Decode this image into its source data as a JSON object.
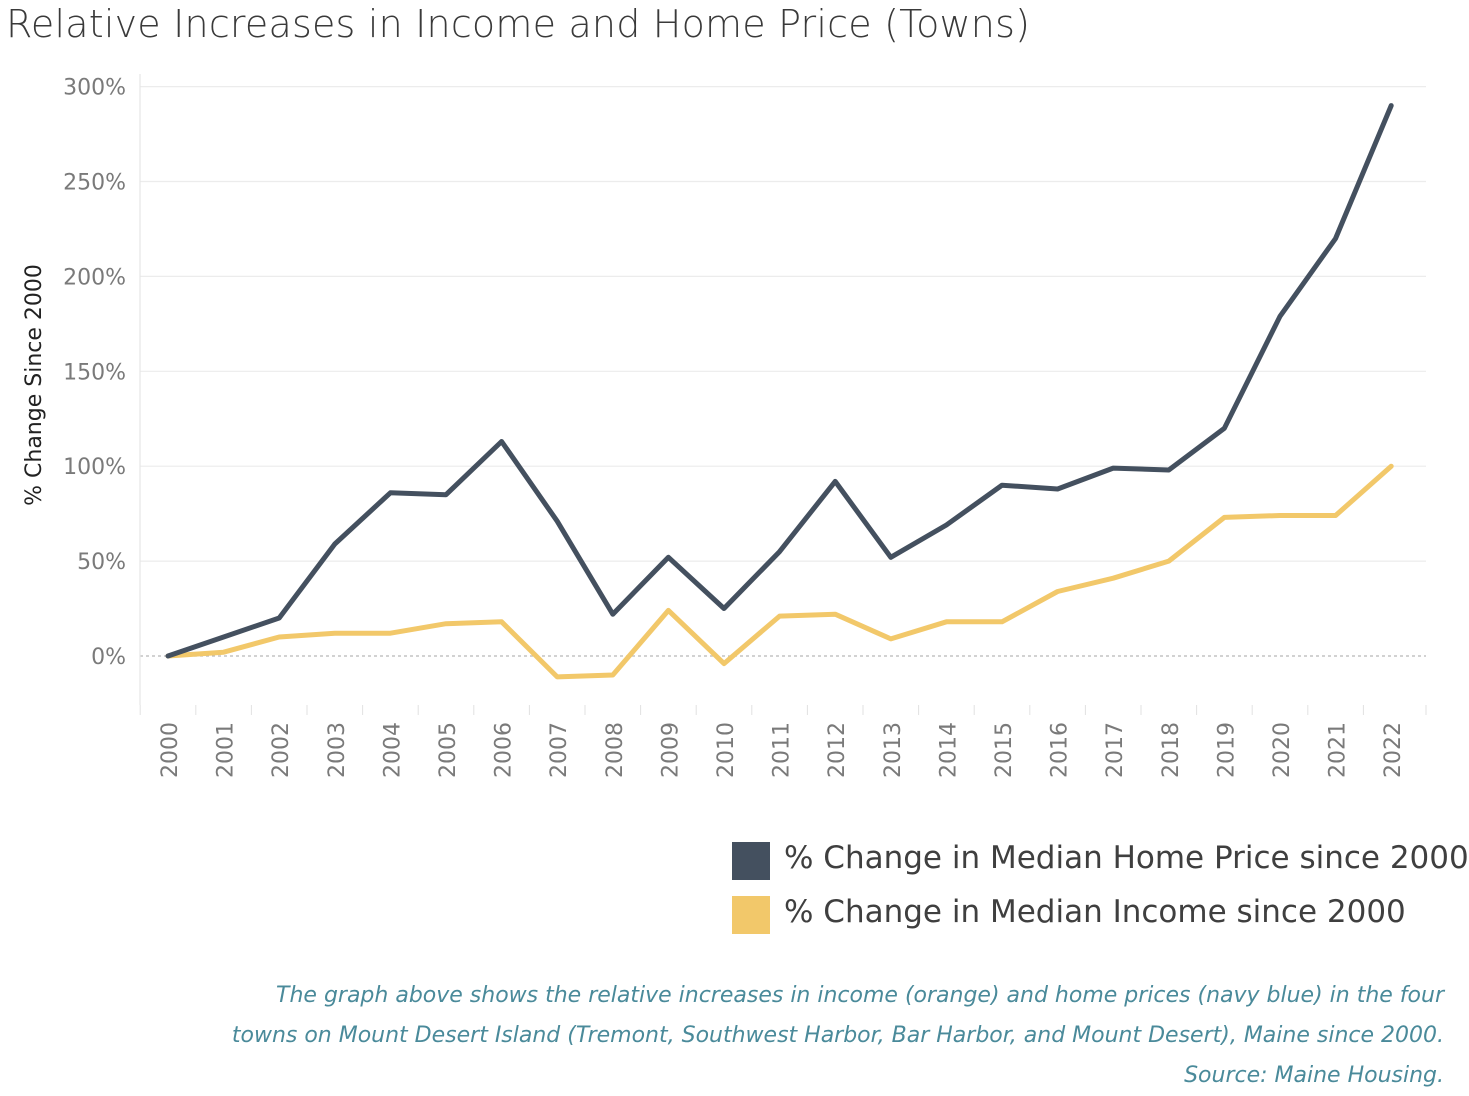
{
  "chart_data": {
    "type": "line",
    "title": "Relative Increases in Income and Home Price (Towns)",
    "ylabel": "% Change Since 2000",
    "xlabel": "",
    "ylim": [
      -25,
      305
    ],
    "yticks": [
      0,
      50,
      100,
      150,
      200,
      250,
      300
    ],
    "ytick_labels": [
      "0%",
      "50%",
      "100%",
      "150%",
      "200%",
      "250%",
      "300%"
    ],
    "categories": [
      "2000",
      "2001",
      "2002",
      "2003",
      "2004",
      "2005",
      "2006",
      "2007",
      "2008",
      "2009",
      "2010",
      "2011",
      "2012",
      "2013",
      "2014",
      "2015",
      "2016",
      "2017",
      "2018",
      "2019",
      "2020",
      "2021",
      "2022"
    ],
    "series": [
      {
        "name": "% Change in Median Home Price since 2000",
        "color": "#44505f",
        "values": [
          0,
          10,
          20,
          59,
          86,
          85,
          113,
          71,
          22,
          52,
          25,
          55,
          92,
          52,
          69,
          90,
          88,
          99,
          98,
          120,
          179,
          220,
          290
        ]
      },
      {
        "name": "% Change in Median Income since 2000",
        "color": "#f2c86a",
        "values": [
          0,
          2,
          10,
          12,
          12,
          17,
          18,
          -11,
          -10,
          24,
          -4,
          21,
          22,
          9,
          18,
          18,
          34,
          41,
          50,
          73,
          74,
          74,
          100
        ]
      }
    ],
    "grid": true,
    "zero_line": "dotted",
    "legend_position": "bottom-right"
  },
  "caption": {
    "line1": "The graph above shows the relative increases in income (orange) and home prices (navy blue) in the four",
    "line2": "towns on Mount Desert Island (Tremont, Southwest Harbor, Bar Harbor, and Mount Desert), Maine since 2000.",
    "line3": "Source: Maine Housing."
  }
}
